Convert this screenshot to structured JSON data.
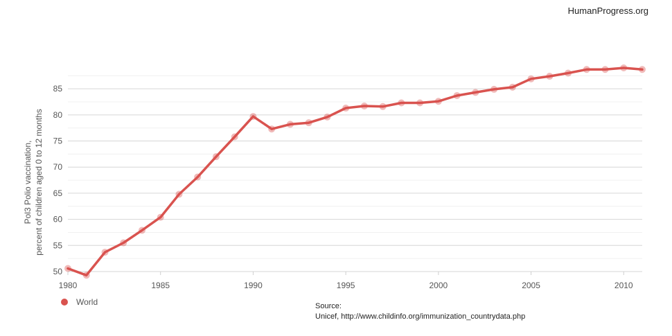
{
  "brand": "HumanProgress.org",
  "chart_data": {
    "type": "line",
    "title": "",
    "xlabel": "",
    "ylabel": [
      "Pol3 Polio vaccination,",
      "percent of children aged 0 to 12 months"
    ],
    "xlim": [
      1980,
      2011
    ],
    "ylim": [
      50,
      89
    ],
    "x_ticks": [
      1980,
      1985,
      1990,
      1995,
      2000,
      2005,
      2010
    ],
    "y_ticks": [
      50,
      55,
      60,
      65,
      70,
      75,
      80,
      85
    ],
    "grid": true,
    "series": [
      {
        "name": "World",
        "color": "#d9534f",
        "x": [
          1980,
          1981,
          1982,
          1983,
          1984,
          1985,
          1986,
          1987,
          1988,
          1989,
          1990,
          1991,
          1992,
          1993,
          1994,
          1995,
          1996,
          1997,
          1998,
          1999,
          2000,
          2001,
          2002,
          2003,
          2004,
          2005,
          2006,
          2007,
          2008,
          2009,
          2010,
          2011
        ],
        "y": [
          50.6,
          49.3,
          53.7,
          55.5,
          57.9,
          60.4,
          64.8,
          68.1,
          72.0,
          75.8,
          79.7,
          77.3,
          78.2,
          78.5,
          79.6,
          81.3,
          81.7,
          81.6,
          82.3,
          82.3,
          82.6,
          83.7,
          84.3,
          84.9,
          85.3,
          86.9,
          87.4,
          88.0,
          88.7,
          88.7,
          89.0,
          88.7
        ]
      }
    ]
  },
  "legend": {
    "label": "World"
  },
  "source": {
    "title": "Source:",
    "text": "Unicef, http://www.childinfo.org/immunization_countrydata.php"
  }
}
